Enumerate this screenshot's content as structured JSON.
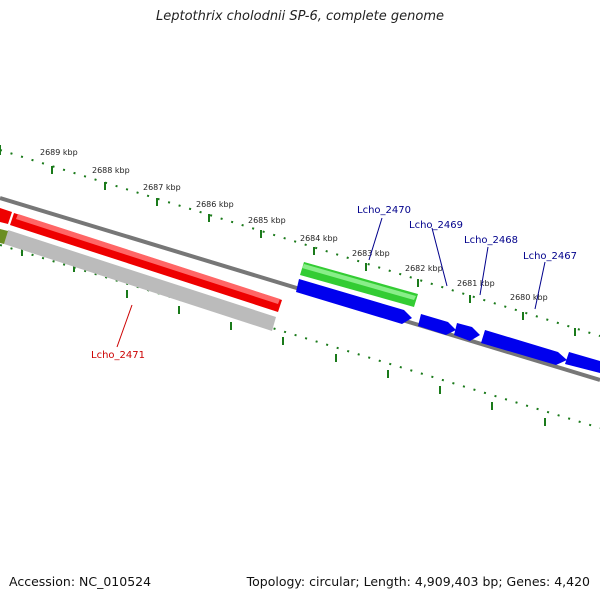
{
  "title": "Leptothrix cholodnii SP-6, complete genome",
  "footer": {
    "accession": "Accession: NC_010524",
    "summary": "Topology: circular; Length: 4,909,403 bp; Genes: 4,420"
  },
  "scale": {
    "labels": [
      "2689 kbp",
      "2688 kbp",
      "2687 kbp",
      "2686 kbp",
      "2685 kbp",
      "2684 kbp",
      "2683 kbp",
      "2682 kbp",
      "2681 kbp",
      "2680 kbp"
    ]
  },
  "genes": [
    {
      "label": "Lcho_2470",
      "color": "#00008b"
    },
    {
      "label": "Lcho_2469",
      "color": "#00008b"
    },
    {
      "label": "Lcho_2468",
      "color": "#00008b"
    },
    {
      "label": "Lcho_2467",
      "color": "#00008b"
    },
    {
      "label": "Lcho_2471",
      "color": "#cc0000"
    }
  ],
  "colors": {
    "backbone": "#777777",
    "scale_ticks": "#1a7a1a",
    "forward_cds": "#0000ee",
    "reverse_cds": "#ee0000",
    "rna": "#33cc33",
    "gc": "#bbbbbb",
    "other": "#6b8e23"
  }
}
